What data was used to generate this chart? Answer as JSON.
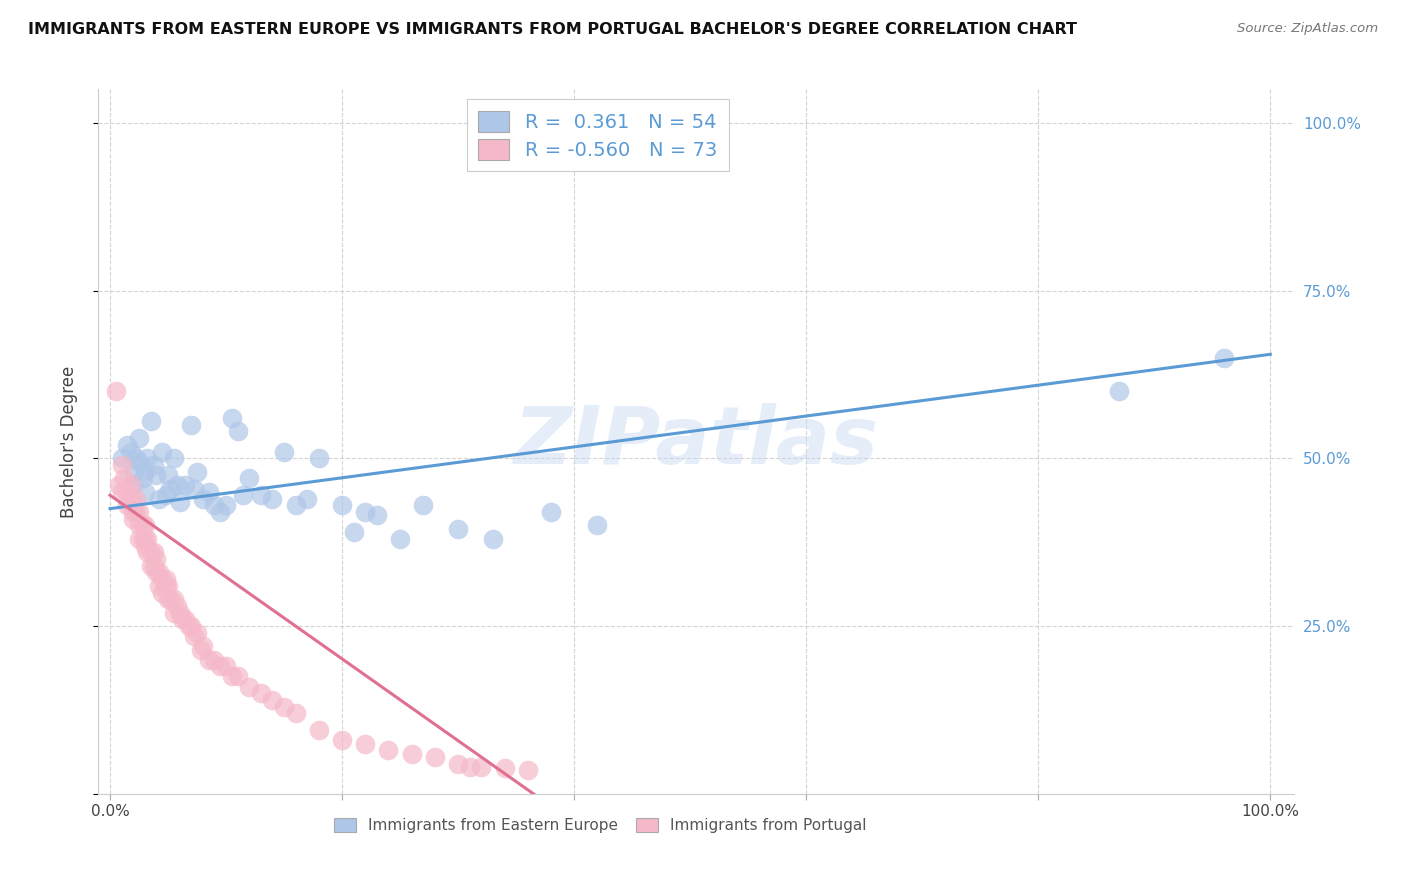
{
  "title": "IMMIGRANTS FROM EASTERN EUROPE VS IMMIGRANTS FROM PORTUGAL BACHELOR'S DEGREE CORRELATION CHART",
  "source": "Source: ZipAtlas.com",
  "ylabel": "Bachelor's Degree",
  "watermark": "ZIPatlas",
  "blue_R": 0.361,
  "blue_N": 54,
  "pink_R": -0.56,
  "pink_N": 73,
  "blue_color": "#aec6e8",
  "pink_color": "#f5b8c8",
  "blue_line_color": "#5b9bd5",
  "pink_line_color": "#e07090",
  "legend_label_blue": "Immigrants from Eastern Europe",
  "legend_label_pink": "Immigrants from Portugal",
  "blue_points_x": [
    0.01,
    0.015,
    0.018,
    0.02,
    0.02,
    0.022,
    0.025,
    0.025,
    0.028,
    0.03,
    0.03,
    0.032,
    0.035,
    0.038,
    0.04,
    0.042,
    0.045,
    0.048,
    0.05,
    0.052,
    0.055,
    0.058,
    0.06,
    0.065,
    0.07,
    0.072,
    0.075,
    0.08,
    0.085,
    0.09,
    0.095,
    0.1,
    0.105,
    0.11,
    0.115,
    0.12,
    0.13,
    0.14,
    0.15,
    0.16,
    0.17,
    0.18,
    0.2,
    0.21,
    0.22,
    0.23,
    0.25,
    0.27,
    0.3,
    0.33,
    0.38,
    0.42,
    0.87,
    0.96
  ],
  "blue_points_y": [
    0.5,
    0.52,
    0.51,
    0.48,
    0.46,
    0.5,
    0.53,
    0.495,
    0.47,
    0.45,
    0.48,
    0.5,
    0.555,
    0.49,
    0.475,
    0.44,
    0.51,
    0.445,
    0.475,
    0.455,
    0.5,
    0.46,
    0.435,
    0.46,
    0.55,
    0.455,
    0.48,
    0.44,
    0.45,
    0.43,
    0.42,
    0.43,
    0.56,
    0.54,
    0.445,
    0.47,
    0.445,
    0.44,
    0.51,
    0.43,
    0.44,
    0.5,
    0.43,
    0.39,
    0.42,
    0.415,
    0.38,
    0.43,
    0.395,
    0.38,
    0.42,
    0.4,
    0.6,
    0.65
  ],
  "pink_points_x": [
    0.005,
    0.008,
    0.01,
    0.01,
    0.012,
    0.015,
    0.015,
    0.018,
    0.018,
    0.02,
    0.02,
    0.02,
    0.022,
    0.022,
    0.025,
    0.025,
    0.025,
    0.028,
    0.028,
    0.03,
    0.03,
    0.03,
    0.032,
    0.032,
    0.035,
    0.035,
    0.038,
    0.038,
    0.04,
    0.04,
    0.042,
    0.042,
    0.045,
    0.045,
    0.048,
    0.048,
    0.05,
    0.05,
    0.052,
    0.055,
    0.055,
    0.058,
    0.06,
    0.062,
    0.065,
    0.068,
    0.07,
    0.072,
    0.075,
    0.078,
    0.08,
    0.085,
    0.09,
    0.095,
    0.1,
    0.105,
    0.11,
    0.12,
    0.13,
    0.14,
    0.15,
    0.16,
    0.18,
    0.2,
    0.22,
    0.24,
    0.26,
    0.28,
    0.3,
    0.31,
    0.32,
    0.34,
    0.36
  ],
  "pink_points_y": [
    0.6,
    0.46,
    0.49,
    0.45,
    0.47,
    0.45,
    0.43,
    0.44,
    0.46,
    0.43,
    0.42,
    0.41,
    0.44,
    0.42,
    0.42,
    0.4,
    0.38,
    0.4,
    0.38,
    0.4,
    0.38,
    0.37,
    0.38,
    0.36,
    0.36,
    0.34,
    0.36,
    0.34,
    0.35,
    0.33,
    0.33,
    0.31,
    0.32,
    0.3,
    0.32,
    0.31,
    0.31,
    0.29,
    0.29,
    0.29,
    0.27,
    0.28,
    0.27,
    0.26,
    0.26,
    0.25,
    0.25,
    0.235,
    0.24,
    0.215,
    0.22,
    0.2,
    0.2,
    0.19,
    0.19,
    0.175,
    0.175,
    0.16,
    0.15,
    0.14,
    0.13,
    0.12,
    0.095,
    0.08,
    0.075,
    0.065,
    0.06,
    0.055,
    0.045,
    0.04,
    0.04,
    0.038,
    0.035
  ],
  "blue_line_x0": 0.0,
  "blue_line_x1": 1.0,
  "blue_line_y0": 0.425,
  "blue_line_y1": 0.655,
  "pink_line_x0": 0.0,
  "pink_line_x1": 0.365,
  "pink_line_y0": 0.445,
  "pink_line_y1": 0.0,
  "xlim": [
    -0.01,
    1.02
  ],
  "ylim": [
    0.0,
    1.05
  ],
  "x_ticks": [
    0.0,
    0.2,
    0.4,
    0.6,
    0.8,
    1.0
  ],
  "y_ticks": [
    0.0,
    0.25,
    0.5,
    0.75,
    1.0
  ],
  "y_right_labels": [
    "",
    "25.0%",
    "50.0%",
    "75.0%",
    "100.0%"
  ],
  "right_label_color": "#5b9bd5"
}
